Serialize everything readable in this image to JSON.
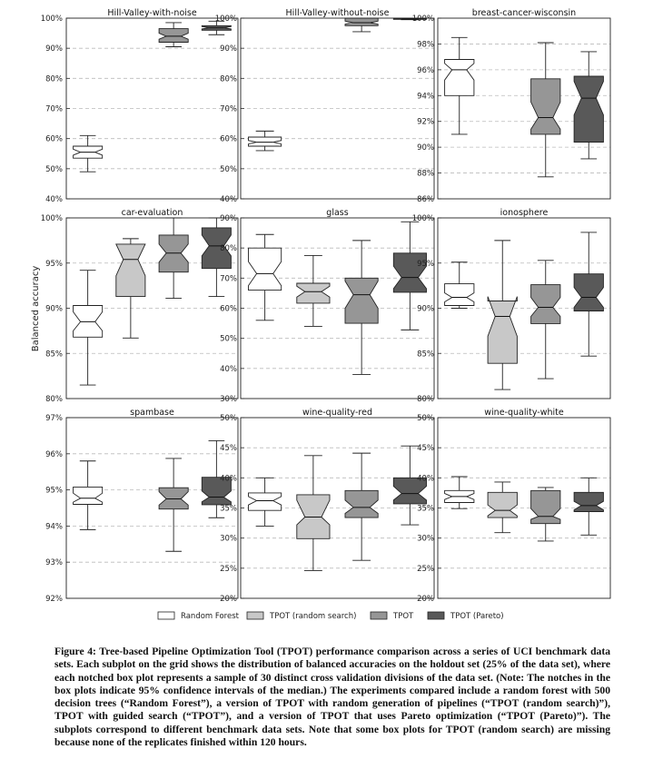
{
  "figure": {
    "ylabel": "Balanced accuracy",
    "legend": [
      {
        "name": "Random Forest",
        "color": "#ffffff"
      },
      {
        "name": "TPOT (random search)",
        "color": "#c8c8c8"
      },
      {
        "name": "TPOT",
        "color": "#969696"
      },
      {
        "name": "TPOT (Pareto)",
        "color": "#595959"
      }
    ]
  },
  "chart_data": [
    {
      "type": "box",
      "title": "Hill-Valley-with-noise",
      "ylim": [
        40,
        100
      ],
      "yticks": [
        "40%",
        "50%",
        "60%",
        "70%",
        "80%",
        "90%",
        "100%"
      ],
      "grid": true,
      "series": [
        {
          "name": "Random Forest",
          "min": 49,
          "q1": 53.5,
          "median": 55.5,
          "q3": 57.5,
          "max": 61,
          "notch_lo": 54.5,
          "notch_hi": 56.5
        },
        {
          "name": "TPOT (random search)",
          "missing": true
        },
        {
          "name": "TPOT",
          "min": 90.5,
          "q1": 92,
          "median": 94,
          "q3": 96.5,
          "max": 98.5,
          "notch_lo": 93,
          "notch_hi": 95
        },
        {
          "name": "TPOT (Pareto)",
          "min": 94.5,
          "q1": 96,
          "median": 96.8,
          "q3": 97.5,
          "max": 99,
          "notch_lo": 96.4,
          "notch_hi": 97.2
        }
      ]
    },
    {
      "type": "box",
      "title": "Hill-Valley-without-noise",
      "ylim": [
        40,
        100
      ],
      "yticks": [
        "40%",
        "50%",
        "60%",
        "70%",
        "80%",
        "90%",
        "100%"
      ],
      "grid": true,
      "series": [
        {
          "name": "Random Forest",
          "min": 56,
          "q1": 57.5,
          "median": 58.8,
          "q3": 60.5,
          "max": 62.5,
          "notch_lo": 58.2,
          "notch_hi": 59.4
        },
        {
          "name": "TPOT (random search)",
          "missing": true
        },
        {
          "name": "TPOT",
          "min": 95.5,
          "q1": 97.5,
          "median": 98.5,
          "q3": 100,
          "max": 100,
          "notch_lo": 98,
          "notch_hi": 99
        },
        {
          "name": "TPOT (Pareto)",
          "min": 99.5,
          "q1": 99.6,
          "median": 99.8,
          "q3": 100,
          "max": 100,
          "notch_lo": 99.7,
          "notch_hi": 99.9
        }
      ]
    },
    {
      "type": "box",
      "title": "breast-cancer-wisconsin",
      "ylim": [
        86,
        100
      ],
      "yticks": [
        "86%",
        "88%",
        "90%",
        "92%",
        "94%",
        "96%",
        "98%",
        "100%"
      ],
      "grid": true,
      "series": [
        {
          "name": "Random Forest",
          "min": 91,
          "q1": 94,
          "median": 96,
          "q3": 96.8,
          "max": 98.5,
          "notch_lo": 95.2,
          "notch_hi": 96.5
        },
        {
          "name": "TPOT (random search)",
          "missing": true
        },
        {
          "name": "TPOT",
          "min": 87.7,
          "q1": 91,
          "median": 92.3,
          "q3": 95.3,
          "max": 98.1,
          "notch_lo": 91.4,
          "notch_hi": 93.5
        },
        {
          "name": "TPOT (Pareto)",
          "min": 89.1,
          "q1": 90.4,
          "median": 93.8,
          "q3": 95.5,
          "max": 97.4,
          "notch_lo": 92.5,
          "notch_hi": 95.1
        }
      ]
    },
    {
      "type": "box",
      "title": "car-evaluation",
      "ylim": [
        80,
        100
      ],
      "yticks": [
        "80%",
        "85%",
        "90%",
        "95%",
        "100%"
      ],
      "grid": true,
      "series": [
        {
          "name": "Random Forest",
          "min": 81.5,
          "q1": 86.8,
          "median": 88.5,
          "q3": 90.3,
          "max": 94.2,
          "notch_lo": 87.5,
          "notch_hi": 89.6
        },
        {
          "name": "TPOT (random search)",
          "min": 86.7,
          "q1": 91.3,
          "median": 95.4,
          "q3": 97.1,
          "max": 97.7,
          "notch_lo": 93.6,
          "notch_hi": 97.1
        },
        {
          "name": "TPOT",
          "min": 91.1,
          "q1": 94,
          "median": 96.1,
          "q3": 98.1,
          "max": 100,
          "notch_lo": 95.1,
          "notch_hi": 97.1
        },
        {
          "name": "TPOT (Pareto)",
          "min": 91.3,
          "q1": 94.4,
          "median": 96.9,
          "q3": 98.9,
          "max": 100,
          "notch_lo": 95.8,
          "notch_hi": 98.1
        }
      ]
    },
    {
      "type": "box",
      "title": "glass",
      "ylim": [
        30,
        90
      ],
      "yticks": [
        "30%",
        "40%",
        "50%",
        "60%",
        "70%",
        "80%",
        "90%"
      ],
      "grid": true,
      "series": [
        {
          "name": "Random Forest",
          "min": 56,
          "q1": 66,
          "median": 71.5,
          "q3": 80,
          "max": 84.5,
          "notch_lo": 67.5,
          "notch_hi": 75.5
        },
        {
          "name": "TPOT (random search)",
          "min": 54,
          "q1": 61.7,
          "median": 65.5,
          "q3": 68.3,
          "max": 77.5,
          "notch_lo": 63.7,
          "notch_hi": 67.3
        },
        {
          "name": "TPOT",
          "min": 38,
          "q1": 55,
          "median": 64.5,
          "q3": 70,
          "max": 82.5,
          "notch_lo": 60,
          "notch_hi": 69
        },
        {
          "name": "TPOT (Pareto)",
          "min": 52.8,
          "q1": 65.3,
          "median": 70.2,
          "q3": 78.3,
          "max": 88.7,
          "notch_lo": 66.5,
          "notch_hi": 74
        }
      ]
    },
    {
      "type": "box",
      "title": "ionosphere",
      "ylim": [
        80,
        100
      ],
      "yticks": [
        "80%",
        "85%",
        "90%",
        "95%",
        "100%"
      ],
      "grid": true,
      "series": [
        {
          "name": "Random Forest",
          "min": 90,
          "q1": 90.3,
          "median": 91.2,
          "q3": 92.7,
          "max": 95.1,
          "notch_lo": 90.7,
          "notch_hi": 91.7
        },
        {
          "name": "TPOT (random search)",
          "min": 81,
          "q1": 83.9,
          "median": 89.1,
          "q3": 90.8,
          "max": 97.5,
          "notch_lo": 86.9,
          "notch_hi": 91.3
        },
        {
          "name": "TPOT",
          "min": 82.2,
          "q1": 88.3,
          "median": 90.1,
          "q3": 92.6,
          "max": 95.3,
          "notch_lo": 89.1,
          "notch_hi": 91.2
        },
        {
          "name": "TPOT (Pareto)",
          "min": 84.7,
          "q1": 89.7,
          "median": 91.2,
          "q3": 93.8,
          "max": 98.4,
          "notch_lo": 90.1,
          "notch_hi": 92.3
        }
      ]
    },
    {
      "type": "box",
      "title": "spambase",
      "ylim": [
        92,
        97
      ],
      "yticks": [
        "92%",
        "93%",
        "94%",
        "95%",
        "96%",
        "97%"
      ],
      "grid": true,
      "series": [
        {
          "name": "Random Forest",
          "min": 93.9,
          "q1": 94.6,
          "median": 94.77,
          "q3": 95.08,
          "max": 95.8,
          "notch_lo": 94.66,
          "notch_hi": 94.91
        },
        {
          "name": "TPOT (random search)",
          "missing": true
        },
        {
          "name": "TPOT",
          "min": 93.3,
          "q1": 94.47,
          "median": 94.75,
          "q3": 95.06,
          "max": 95.87,
          "notch_lo": 94.58,
          "notch_hi": 94.95
        },
        {
          "name": "TPOT (Pareto)",
          "min": 94.23,
          "q1": 94.59,
          "median": 94.8,
          "q3": 95.35,
          "max": 96.36,
          "notch_lo": 94.67,
          "notch_hi": 94.97
        }
      ]
    },
    {
      "type": "box",
      "title": "wine-quality-red",
      "ylim": [
        20,
        50
      ],
      "yticks": [
        "20%",
        "25%",
        "30%",
        "35%",
        "40%",
        "45%",
        "50%"
      ],
      "grid": true,
      "series": [
        {
          "name": "Random Forest",
          "min": 32,
          "q1": 34.6,
          "median": 36.2,
          "q3": 37.5,
          "max": 40,
          "notch_lo": 35.5,
          "notch_hi": 36.9
        },
        {
          "name": "TPOT (random search)",
          "min": 24.6,
          "q1": 29.9,
          "median": 33.5,
          "q3": 37.2,
          "max": 43.7,
          "notch_lo": 32.2,
          "notch_hi": 36.3
        },
        {
          "name": "TPOT",
          "min": 26.3,
          "q1": 33.4,
          "median": 35.1,
          "q3": 37.9,
          "max": 44.1,
          "notch_lo": 34.1,
          "notch_hi": 36.3
        },
        {
          "name": "TPOT (Pareto)",
          "min": 32.2,
          "q1": 35.7,
          "median": 37.4,
          "q3": 40,
          "max": 45.3,
          "notch_lo": 36.3,
          "notch_hi": 38.6
        }
      ]
    },
    {
      "type": "box",
      "title": "wine-quality-white",
      "ylim": [
        20,
        50
      ],
      "yticks": [
        "20%",
        "25%",
        "30%",
        "35%",
        "40%",
        "45%",
        "50%"
      ],
      "grid": true,
      "series": [
        {
          "name": "Random Forest",
          "min": 34.9,
          "q1": 35.9,
          "median": 36.9,
          "q3": 37.9,
          "max": 40.2,
          "notch_lo": 36.4,
          "notch_hi": 37.4
        },
        {
          "name": "TPOT (random search)",
          "min": 30.9,
          "q1": 33.4,
          "median": 34.6,
          "q3": 37.6,
          "max": 39.3,
          "notch_lo": 33.7,
          "notch_hi": 35.5
        },
        {
          "name": "TPOT",
          "min": 29.5,
          "q1": 32.4,
          "median": 33.6,
          "q3": 37.9,
          "max": 38.4,
          "notch_lo": 33.1,
          "notch_hi": 34.9
        },
        {
          "name": "TPOT (Pareto)",
          "min": 30.5,
          "q1": 34.4,
          "median": 35.4,
          "q3": 37.6,
          "max": 40,
          "notch_lo": 34.7,
          "notch_hi": 36.1
        }
      ]
    }
  ],
  "caption": {
    "text": "Figure 4: Tree-based Pipeline Optimization Tool (TPOT) performance comparison across a series of UCI benchmark data sets. Each subplot on the grid shows the distribution of balanced accuracies on the holdout set (25% of the data set), where each notched box plot represents a sample of 30 distinct cross validation divisions of the data set. (Note: The notches in the box plots indicate 95% confidence intervals of the median.) The experiments compared include a random forest with 500 decision trees (“Random Forest”), a version of TPOT with random generation of pipelines (“TPOT (random search)”), TPOT with guided search (“TPOT”), and a version of TPOT that uses Pareto optimization (“TPOT (Pareto)”). The subplots correspond to different benchmark data sets. Note that some box plots for TPOT (random search) are missing because none of the replicates finished within 120 hours."
  }
}
